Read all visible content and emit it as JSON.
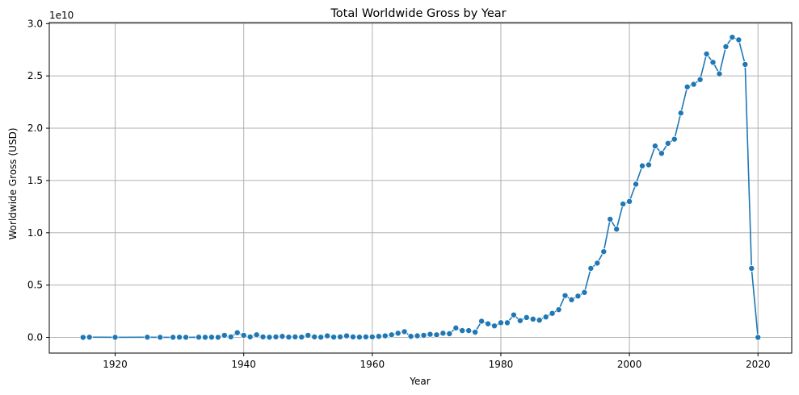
{
  "chart_data": {
    "type": "line",
    "title": "Total Worldwide Gross by Year",
    "xlabel": "Year",
    "ylabel": "Worldwide Gross (USD)",
    "y_offset_label": "1e10",
    "xlim": [
      1909.75,
      2025.25
    ],
    "ylim": [
      -1500000000.0,
      30100000000.0
    ],
    "x_ticks": [
      1920,
      1940,
      1960,
      1980,
      2000,
      2020
    ],
    "x_tick_labels": [
      "1920",
      "1940",
      "1960",
      "1980",
      "2000",
      "2020"
    ],
    "y_ticks": [
      0,
      5000000000.0,
      10000000000.0,
      15000000000.0,
      20000000000.0,
      25000000000.0,
      30000000000.0
    ],
    "y_tick_labels": [
      "0.0",
      "0.5",
      "1.0",
      "1.5",
      "2.0",
      "2.5",
      "3.0"
    ],
    "grid": true,
    "color": "#1f77b4",
    "marker": "circle",
    "series": [
      {
        "x": [
          1915,
          1916,
          1920,
          1925,
          1927,
          1929,
          1930,
          1931,
          1933,
          1934,
          1935,
          1936,
          1937,
          1938,
          1939,
          1940,
          1941,
          1942,
          1943,
          1944,
          1945,
          1946,
          1947,
          1948,
          1949,
          1950,
          1951,
          1952,
          1953,
          1954,
          1955,
          1956,
          1957,
          1958,
          1959,
          1960,
          1961,
          1962,
          1963,
          1964,
          1965,
          1966,
          1967,
          1968,
          1969,
          1970,
          1971,
          1972,
          1973,
          1974,
          1975,
          1976,
          1977,
          1978,
          1979,
          1980,
          1981,
          1982,
          1983,
          1984,
          1985,
          1986,
          1987,
          1988,
          1989,
          1990,
          1991,
          1992,
          1993,
          1994,
          1995,
          1996,
          1997,
          1998,
          1999,
          2000,
          2001,
          2002,
          2003,
          2004,
          2005,
          2006,
          2007,
          2008,
          2009,
          2010,
          2011,
          2012,
          2013,
          2014,
          2015,
          2016,
          2017,
          2018,
          2019,
          2020
        ],
        "y": [
          0.0,
          20000000.0,
          10000000.0,
          20000000.0,
          10000000.0,
          10000000.0,
          20000000.0,
          10000000.0,
          20000000.0,
          10000000.0,
          20000000.0,
          10000000.0,
          200000000.0,
          50000000.0,
          450000000.0,
          200000000.0,
          50000000.0,
          250000000.0,
          50000000.0,
          20000000.0,
          50000000.0,
          100000000.0,
          30000000.0,
          50000000.0,
          30000000.0,
          200000000.0,
          50000000.0,
          20000000.0,
          150000000.0,
          30000000.0,
          50000000.0,
          150000000.0,
          50000000.0,
          30000000.0,
          50000000.0,
          50000000.0,
          100000000.0,
          150000000.0,
          250000000.0,
          400000000.0,
          550000000.0,
          100000000.0,
          150000000.0,
          200000000.0,
          300000000.0,
          250000000.0,
          400000000.0,
          350000000.0,
          900000000.0,
          650000000.0,
          650000000.0,
          500000000.0,
          1550000000.0,
          1300000000.0,
          1100000000.0,
          1400000000.0,
          1400000000.0,
          2150000000.0,
          1600000000.0,
          1900000000.0,
          1750000000.0,
          1650000000.0,
          1950000000.0,
          2300000000.0,
          2650000000.0,
          4000000000.0,
          3600000000.0,
          3950000000.0,
          4300000000.0,
          6600000000.0,
          7100000000.0,
          8200000000.0,
          11300000000.0,
          10350000000.0,
          12750000000.0,
          13000000000.0,
          14650000000.0,
          16400000000.0,
          16500000000.0,
          18300000000.0,
          17600000000.0,
          18550000000.0,
          18950000000.0,
          21450000000.0,
          23950000000.0,
          24200000000.0,
          24650000000.0,
          27100000000.0,
          26300000000.0,
          25200000000.0,
          27800000000.0,
          28700000000.0,
          28450000000.0,
          26100000000.0,
          6600000000.0,
          0.0
        ]
      }
    ]
  }
}
